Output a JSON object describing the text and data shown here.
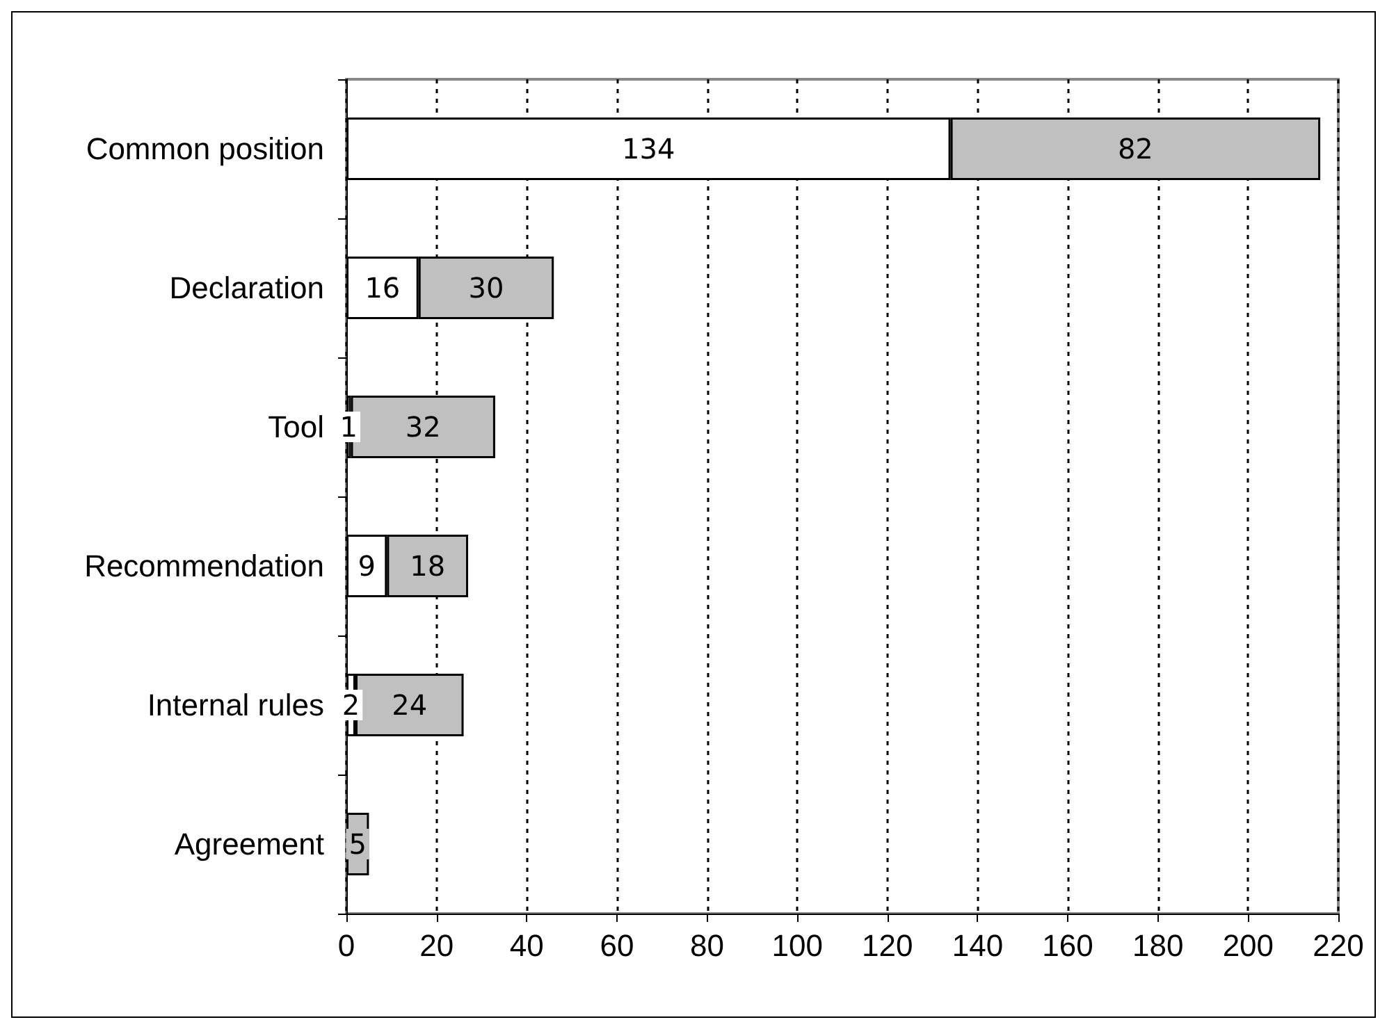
{
  "chart_data": {
    "type": "bar",
    "orientation": "horizontal",
    "stacked": true,
    "categories": [
      "Common position",
      "Declaration",
      "Tool",
      "Recommendation",
      "Internal rules",
      "Agreement"
    ],
    "series": [
      {
        "color": "#ffffff",
        "values": [
          134,
          16,
          1,
          9,
          2,
          null
        ]
      },
      {
        "color": "#c0c0c0",
        "values": [
          82,
          30,
          32,
          18,
          24,
          5
        ]
      }
    ],
    "xlim": [
      0,
      220
    ],
    "xticks": [
      0,
      20,
      40,
      60,
      80,
      100,
      120,
      140,
      160,
      180,
      200,
      220
    ],
    "grid": "x",
    "data_labels": true
  }
}
